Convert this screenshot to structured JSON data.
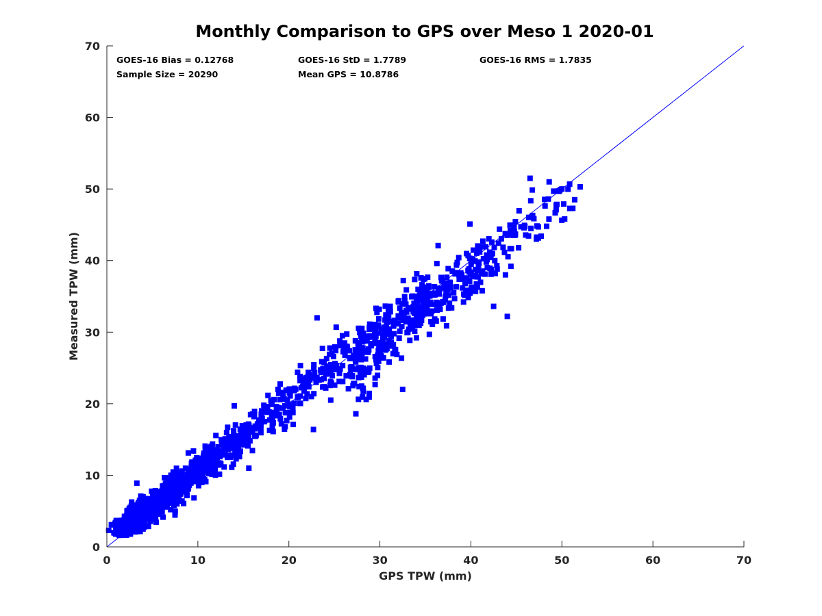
{
  "chart_data": {
    "type": "scatter",
    "title": "Monthly Comparison to GPS over Meso 1 2020-01",
    "xlabel": "GPS TPW (mm)",
    "ylabel": "Measured TPW (mm)",
    "xlim": [
      0,
      70
    ],
    "ylim": [
      0,
      70
    ],
    "xticks": [
      "0",
      "10",
      "20",
      "30",
      "40",
      "50",
      "60",
      "70"
    ],
    "yticks": [
      "0",
      "10",
      "20",
      "30",
      "40",
      "50",
      "60",
      "70"
    ],
    "grid": false,
    "marker": "square",
    "color": "#0000ff",
    "reference_line": {
      "name": "1:1 line",
      "x": [
        0,
        70
      ],
      "y": [
        0,
        70
      ],
      "color": "#0000ff"
    },
    "annotations": [
      "GOES-16 Bias = 0.12768",
      "GOES-16 StD = 1.7789",
      "GOES-16 RMS = 1.7835",
      "Sample Size = 20290",
      "Mean GPS = 10.8786"
    ],
    "clusters": [
      {
        "x": [
          1.0,
          4.0
        ],
        "y": [
          1.8,
          5.5
        ],
        "n": 260,
        "spread": 0.8
      },
      {
        "x": [
          3.0,
          8.0
        ],
        "y": [
          3.0,
          9.5
        ],
        "n": 360,
        "spread": 1.0
      },
      {
        "x": [
          7.0,
          12.0
        ],
        "y": [
          7.0,
          13.0
        ],
        "n": 230,
        "spread": 1.1
      },
      {
        "x": [
          11.0,
          17.0
        ],
        "y": [
          11.5,
          17.5
        ],
        "n": 150,
        "spread": 1.2
      },
      {
        "x": [
          17.0,
          24.0
        ],
        "y": [
          17.5,
          24.5
        ],
        "n": 110,
        "spread": 1.3
      },
      {
        "x": [
          24.0,
          30.0
        ],
        "y": [
          24.0,
          31.0
        ],
        "n": 90,
        "spread": 1.5
      },
      {
        "x": [
          27.0,
          35.0
        ],
        "y": [
          24.0,
          35.0
        ],
        "n": 220,
        "spread": 2.0
      },
      {
        "x": [
          34.0,
          42.0
        ],
        "y": [
          33.0,
          40.0
        ],
        "n": 170,
        "spread": 1.7
      },
      {
        "x": [
          40.0,
          47.0
        ],
        "y": [
          38.0,
          46.0
        ],
        "n": 45,
        "spread": 1.5
      },
      {
        "x": [
          45.0,
          52.0
        ],
        "y": [
          43.0,
          50.0
        ],
        "n": 28,
        "spread": 1.5
      }
    ],
    "points": [
      [
        0.2,
        2.3
      ],
      [
        0.5,
        3.1
      ],
      [
        22.7,
        16.4
      ],
      [
        23.1,
        32.0
      ],
      [
        36.4,
        42.1
      ],
      [
        39.9,
        45.1
      ],
      [
        44.0,
        32.2
      ],
      [
        46.5,
        51.5
      ],
      [
        48.6,
        51.0
      ],
      [
        50.2,
        47.9
      ],
      [
        51.4,
        48.5
      ],
      [
        52.0,
        50.3
      ],
      [
        50.0,
        50.0
      ],
      [
        25.2,
        30.7
      ],
      [
        32.5,
        22.0
      ],
      [
        28.5,
        20.6
      ],
      [
        26.3,
        23.9
      ],
      [
        24.6,
        20.5
      ],
      [
        15.6,
        11.0
      ],
      [
        14.0,
        19.7
      ],
      [
        42.5,
        33.6
      ],
      [
        44.4,
        39.2
      ],
      [
        43.8,
        38.0
      ],
      [
        46.6,
        44.5
      ],
      [
        47.2,
        43.0
      ],
      [
        48.5,
        48.6
      ],
      [
        51.2,
        47.3
      ],
      [
        49.1,
        49.7
      ],
      [
        3.3,
        8.9
      ],
      [
        17.0,
        19.0
      ]
    ]
  }
}
